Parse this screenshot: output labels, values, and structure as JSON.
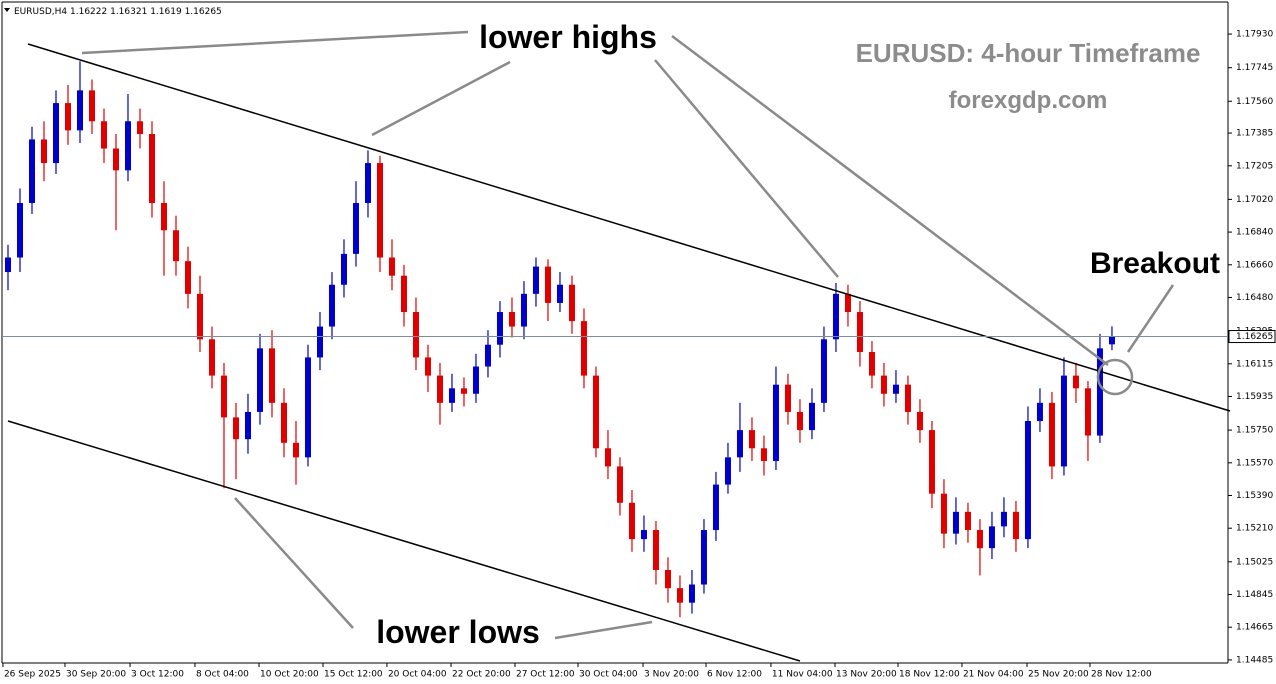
{
  "chart_data": {
    "type": "candlestick",
    "symbol": "EURUSD,H4",
    "title": "EURUSD: 4-hour Timeframe",
    "subtitle": "forexgdp.com",
    "annotations": [
      "lower highs",
      "lower lows",
      "Breakout"
    ],
    "up_color": "#0000cd",
    "down_color": "#e00000",
    "current_price": 1.16265,
    "open": [
      1.1662,
      1.167,
      1.17,
      1.1735,
      1.1722,
      1.1755,
      1.174,
      1.1762,
      1.1745,
      1.173,
      1.1718,
      1.1745,
      1.1738,
      1.17,
      1.1685,
      1.1668,
      1.165,
      1.1625,
      1.1605,
      1.1582,
      1.157,
      1.1585,
      1.162,
      1.159,
      1.1568,
      1.156,
      1.1615,
      1.1632,
      1.1655,
      1.1672,
      1.17,
      1.1722,
      1.167,
      1.166,
      1.164,
      1.1615,
      1.1605,
      1.159,
      1.1598,
      1.1595,
      1.161,
      1.1622,
      1.164,
      1.1632,
      1.165,
      1.1665,
      1.1645,
      1.1655,
      1.1635,
      1.1605,
      1.1565,
      1.1555,
      1.1535,
      1.1515,
      1.152,
      1.1498,
      1.1488,
      1.148,
      1.149,
      1.152,
      1.1545,
      1.156,
      1.1575,
      1.1565,
      1.1558,
      1.16,
      1.1585,
      1.1575,
      1.159,
      1.1625,
      1.165,
      1.164,
      1.1618,
      1.1605,
      1.1595,
      1.16,
      1.1585,
      1.1575,
      1.154,
      1.1518,
      1.153,
      1.152,
      1.151,
      1.1522,
      1.153,
      1.1515,
      1.158,
      1.159,
      1.1555,
      1.1605,
      1.1598,
      1.1572,
      1.16222
    ],
    "high": [
      1.1677,
      1.1708,
      1.1742,
      1.1745,
      1.1762,
      1.1765,
      1.1778,
      1.1768,
      1.1752,
      1.1738,
      1.176,
      1.1752,
      1.1745,
      1.1712,
      1.1693,
      1.1676,
      1.166,
      1.1632,
      1.1612,
      1.159,
      1.1595,
      1.1628,
      1.163,
      1.1598,
      1.158,
      1.1622,
      1.164,
      1.1662,
      1.168,
      1.1712,
      1.1729,
      1.1726,
      1.168,
      1.1666,
      1.1648,
      1.1622,
      1.1612,
      1.1606,
      1.1604,
      1.1617,
      1.163,
      1.1646,
      1.1648,
      1.1657,
      1.167,
      1.1669,
      1.1662,
      1.166,
      1.1642,
      1.161,
      1.1575,
      1.156,
      1.1542,
      1.1528,
      1.1525,
      1.1505,
      1.1495,
      1.1498,
      1.1526,
      1.1552,
      1.1568,
      1.159,
      1.1582,
      1.1572,
      1.161,
      1.1606,
      1.1592,
      1.1598,
      1.1632,
      1.1656,
      1.1655,
      1.1646,
      1.1624,
      1.1612,
      1.1608,
      1.1605,
      1.1592,
      1.158,
      1.1548,
      1.1538,
      1.1535,
      1.1526,
      1.153,
      1.1538,
      1.1536,
      1.1588,
      1.1598,
      1.1596,
      1.1615,
      1.1612,
      1.1602,
      1.1628,
      1.16321
    ],
    "low": [
      1.1652,
      1.1662,
      1.1694,
      1.1712,
      1.1716,
      1.1732,
      1.1733,
      1.1738,
      1.1722,
      1.1685,
      1.1712,
      1.173,
      1.1692,
      1.166,
      1.166,
      1.1642,
      1.1618,
      1.1598,
      1.1543,
      1.1548,
      1.1562,
      1.1578,
      1.1582,
      1.156,
      1.1545,
      1.1555,
      1.1608,
      1.1625,
      1.1648,
      1.1665,
      1.1692,
      1.1662,
      1.1652,
      1.1632,
      1.1608,
      1.1596,
      1.1578,
      1.1585,
      1.1588,
      1.159,
      1.1604,
      1.1615,
      1.1626,
      1.1625,
      1.1643,
      1.1635,
      1.164,
      1.1628,
      1.1598,
      1.156,
      1.1548,
      1.1528,
      1.1508,
      1.1508,
      1.149,
      1.148,
      1.1472,
      1.1474,
      1.1485,
      1.1514,
      1.154,
      1.1552,
      1.1558,
      1.155,
      1.1553,
      1.1578,
      1.1568,
      1.157,
      1.1585,
      1.1618,
      1.1632,
      1.161,
      1.1598,
      1.1588,
      1.159,
      1.1578,
      1.1568,
      1.1532,
      1.151,
      1.1512,
      1.1513,
      1.1495,
      1.1504,
      1.1516,
      1.1508,
      1.151,
      1.1574,
      1.1548,
      1.155,
      1.159,
      1.1558,
      1.1568,
      1.1619
    ],
    "close": [
      1.167,
      1.17,
      1.1735,
      1.1722,
      1.1755,
      1.174,
      1.1762,
      1.1745,
      1.173,
      1.1718,
      1.1745,
      1.1738,
      1.17,
      1.1685,
      1.1668,
      1.165,
      1.1625,
      1.1605,
      1.1582,
      1.157,
      1.1585,
      1.162,
      1.159,
      1.1568,
      1.156,
      1.1615,
      1.1632,
      1.1655,
      1.1672,
      1.17,
      1.1722,
      1.167,
      1.166,
      1.164,
      1.1615,
      1.1605,
      1.159,
      1.1598,
      1.1595,
      1.161,
      1.1622,
      1.164,
      1.1632,
      1.165,
      1.1665,
      1.1645,
      1.1655,
      1.1635,
      1.1605,
      1.1565,
      1.1555,
      1.1535,
      1.1515,
      1.152,
      1.1498,
      1.1488,
      1.148,
      1.149,
      1.152,
      1.1545,
      1.156,
      1.1575,
      1.1565,
      1.1558,
      1.16,
      1.1585,
      1.1575,
      1.159,
      1.1625,
      1.165,
      1.164,
      1.1618,
      1.1605,
      1.1595,
      1.16,
      1.1585,
      1.1575,
      1.154,
      1.1518,
      1.153,
      1.152,
      1.151,
      1.1522,
      1.153,
      1.1515,
      1.158,
      1.159,
      1.1555,
      1.1605,
      1.1598,
      1.1572,
      1.162,
      1.16265
    ],
    "ylim": [
      1.14468,
      1.18101
    ],
    "yticks": [
      {
        "value": 1.1793,
        "label": "1.17930"
      },
      {
        "value": 1.17745,
        "label": "1.17745"
      },
      {
        "value": 1.1756,
        "label": "1.17560"
      },
      {
        "value": 1.17385,
        "label": "1.17385"
      },
      {
        "value": 1.17205,
        "label": "1.17205"
      },
      {
        "value": 1.1702,
        "label": "1.17020"
      },
      {
        "value": 1.1684,
        "label": "1.16840"
      },
      {
        "value": 1.1666,
        "label": "1.16660"
      },
      {
        "value": 1.1648,
        "label": "1.16480"
      },
      {
        "value": 1.16295,
        "label": "1.16295"
      },
      {
        "value": 1.16115,
        "label": "1.16115"
      },
      {
        "value": 1.15935,
        "label": "1.15935"
      },
      {
        "value": 1.1575,
        "label": "1.15750"
      },
      {
        "value": 1.1557,
        "label": "1.15570"
      },
      {
        "value": 1.1539,
        "label": "1.15390"
      },
      {
        "value": 1.1521,
        "label": "1.15210"
      },
      {
        "value": 1.15025,
        "label": "1.15025"
      },
      {
        "value": 1.14845,
        "label": "1.14845"
      },
      {
        "value": 1.14665,
        "label": "1.14665"
      },
      {
        "value": 1.14485,
        "label": "1.14485"
      }
    ],
    "xlim": [
      -0.5,
      101.67
    ],
    "xticks": [
      {
        "value": -0.42,
        "label": "26 Sep 2025"
      },
      {
        "value": 4.75,
        "label": "30 Sep 20:00"
      },
      {
        "value": 10.17,
        "label": "3 Oct 12:00"
      },
      {
        "value": 15.58,
        "label": "8 Oct 04:00"
      },
      {
        "value": 20.92,
        "label": "10 Oct 20:00"
      },
      {
        "value": 26.25,
        "label": "15 Oct 12:00"
      },
      {
        "value": 31.58,
        "label": "20 Oct 04:00"
      },
      {
        "value": 36.92,
        "label": "22 Oct 20:00"
      },
      {
        "value": 42.25,
        "label": "27 Oct 12:00"
      },
      {
        "value": 47.5,
        "label": "30 Oct 04:00"
      },
      {
        "value": 52.92,
        "label": "3 Nov 20:00"
      },
      {
        "value": 58.17,
        "label": "6 Nov 12:00"
      },
      {
        "value": 63.58,
        "label": "11 Nov 04:00"
      },
      {
        "value": 68.92,
        "label": "13 Nov 20:00"
      },
      {
        "value": 74.17,
        "label": "18 Nov 12:00"
      },
      {
        "value": 79.5,
        "label": "21 Nov 04:00"
      },
      {
        "value": 84.92,
        "label": "25 Nov 20:00"
      },
      {
        "value": 90.17,
        "label": "28 Nov 12:00"
      }
    ]
  }
}
